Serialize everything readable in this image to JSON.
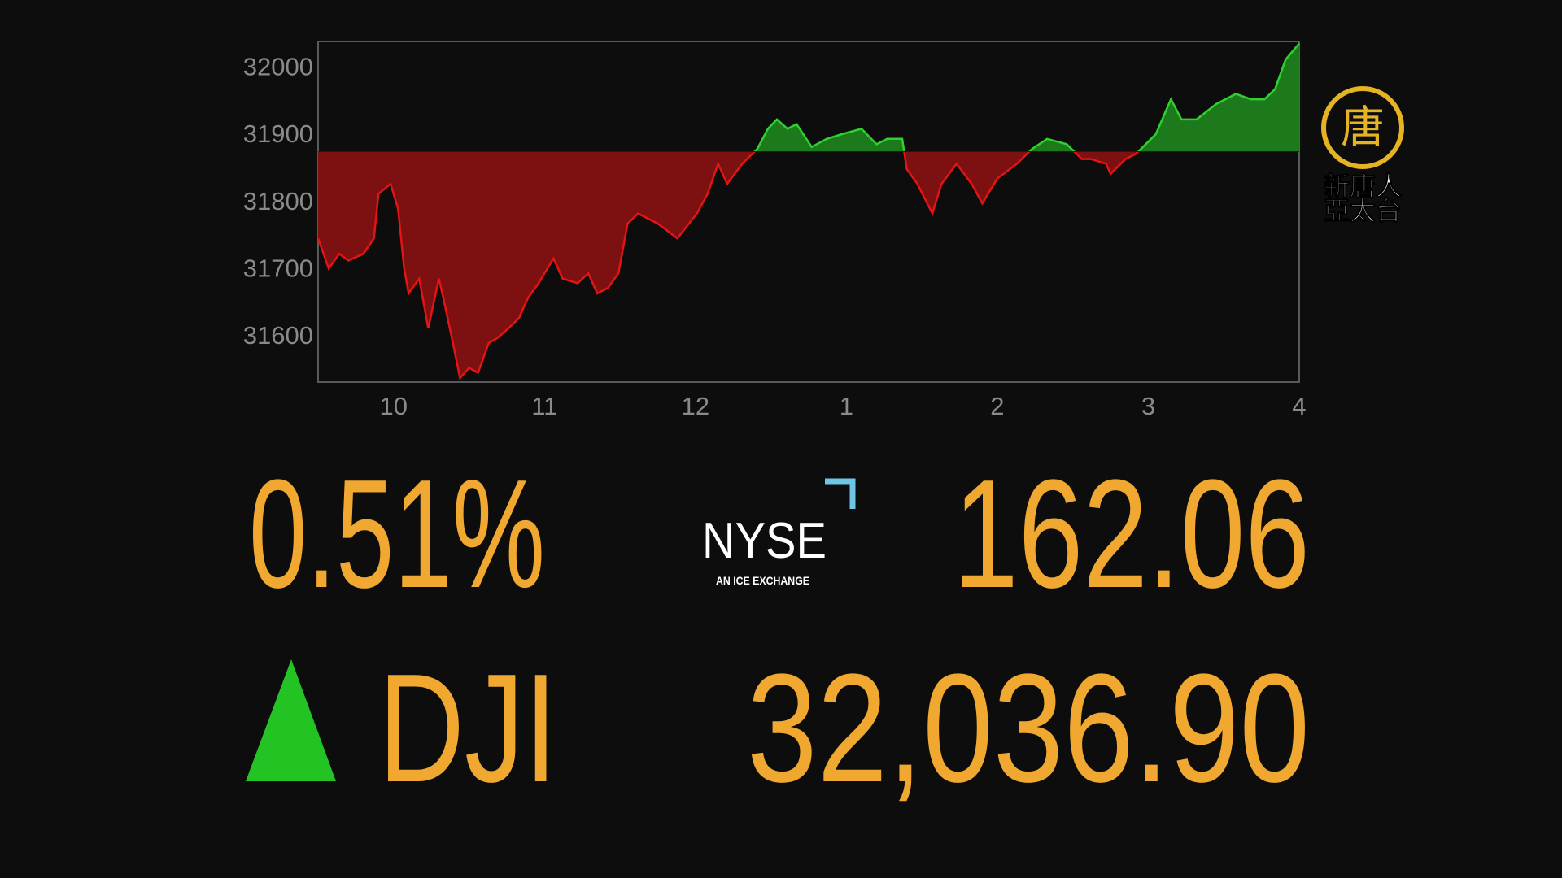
{
  "chart_data": {
    "type": "area",
    "x": [
      9.5,
      9.57,
      9.64,
      9.7,
      9.8,
      9.87,
      9.9,
      9.98,
      10.03,
      10.07,
      10.1,
      10.17,
      10.23,
      10.3,
      10.33,
      10.4,
      10.44,
      10.5,
      10.56,
      10.63,
      10.69,
      10.76,
      10.83,
      10.89,
      10.96,
      11.06,
      11.12,
      11.22,
      11.29,
      11.35,
      11.42,
      11.49,
      11.55,
      11.62,
      11.75,
      11.88,
      12.01,
      12.08,
      12.15,
      12.21,
      12.31,
      12.41,
      12.48,
      12.54,
      12.61,
      12.67,
      12.77,
      12.87,
      12.97,
      13.1,
      13.2,
      13.27,
      13.37,
      13.4,
      13.47,
      13.57,
      13.63,
      13.73,
      13.83,
      13.9,
      14.0,
      14.13,
      14.23,
      14.33,
      14.46,
      14.56,
      14.62,
      14.72,
      14.75,
      14.85,
      14.92,
      15.05,
      15.15,
      15.22,
      15.32,
      15.45,
      15.58,
      15.68,
      15.77,
      15.84,
      15.91,
      16.0
    ],
    "values": [
      31744,
      31699,
      31721,
      31711,
      31721,
      31744,
      31810,
      31825,
      31788,
      31699,
      31662,
      31684,
      31610,
      31684,
      31655,
      31581,
      31536,
      31551,
      31544,
      31588,
      31596,
      31610,
      31625,
      31655,
      31677,
      31714,
      31684,
      31677,
      31692,
      31662,
      31670,
      31692,
      31766,
      31781,
      31766,
      31744,
      31781,
      31810,
      31855,
      31825,
      31855,
      31877,
      31907,
      31921,
      31907,
      31914,
      31880,
      31892,
      31899,
      31907,
      31884,
      31892,
      31892,
      31847,
      31825,
      31781,
      31825,
      31855,
      31825,
      31796,
      31833,
      31855,
      31877,
      31892,
      31884,
      31862,
      31862,
      31855,
      31840,
      31862,
      31870,
      31899,
      31951,
      31921,
      31921,
      31944,
      31959,
      31951,
      31951,
      31966,
      32010,
      32034
    ],
    "baseline": 31873,
    "colors": {
      "up": "#2fd02f",
      "up_fill": "#1c7a1c",
      "down": "#e41414",
      "down_fill": "#7d1010"
    },
    "xlim": [
      9.5,
      16
    ],
    "ylim": [
      31530,
      32037
    ],
    "xticks": [
      10,
      11,
      12,
      {
        "value": 13,
        "label": "1"
      },
      {
        "value": 14,
        "label": "2"
      },
      {
        "value": 15,
        "label": "3"
      },
      {
        "value": 16,
        "label": "4"
      }
    ],
    "yticks": [
      31600,
      31700,
      31800,
      31900,
      32000
    ],
    "grid": false
  },
  "quote": {
    "percent": "0.51%",
    "points": "162.06",
    "index": "DJI",
    "level": "32,036.90"
  },
  "exchange_logo": {
    "name": "NYSE",
    "tagline": "AN ICE EXCHANGE"
  },
  "channel_logo": {
    "emblem": "唐",
    "line1": "新唐人",
    "line2": "亞太台"
  }
}
